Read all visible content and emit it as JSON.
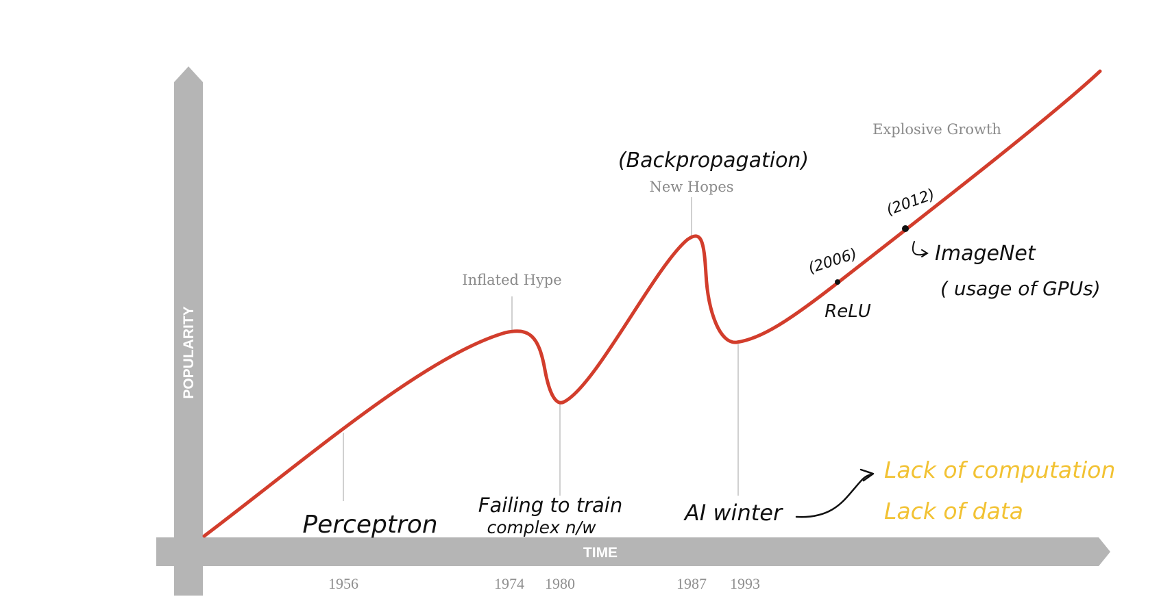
{
  "axes": {
    "x_label": "TIME",
    "y_label": "POPULARITY"
  },
  "phases": {
    "inflated_hype": "Inflated Hype",
    "new_hopes": "New Hopes",
    "explosive_growth": "Explosive Growth"
  },
  "years": [
    "1956",
    "1974",
    "1980",
    "1987",
    "1993"
  ],
  "annotations": {
    "perceptron": "Perceptron",
    "failing_line1": "Failing to train",
    "failing_line2": "complex n/w",
    "ai_winter": "AI winter",
    "backprop": "(Backpropagation)",
    "relu_year": "(2006)",
    "relu": "ReLU",
    "imagenet_year": "(2012)",
    "imagenet": "ImageNet",
    "gpus": "( usage of GPUs)",
    "lack_computation": "Lack of computation",
    "lack_data": "Lack of data"
  },
  "colors": {
    "curve": "#d23d2c",
    "axis": "#b5b5b5",
    "label_gray": "#8a8a8a",
    "annotation_black": "#111111",
    "annotation_yellow": "#f2c233"
  }
}
